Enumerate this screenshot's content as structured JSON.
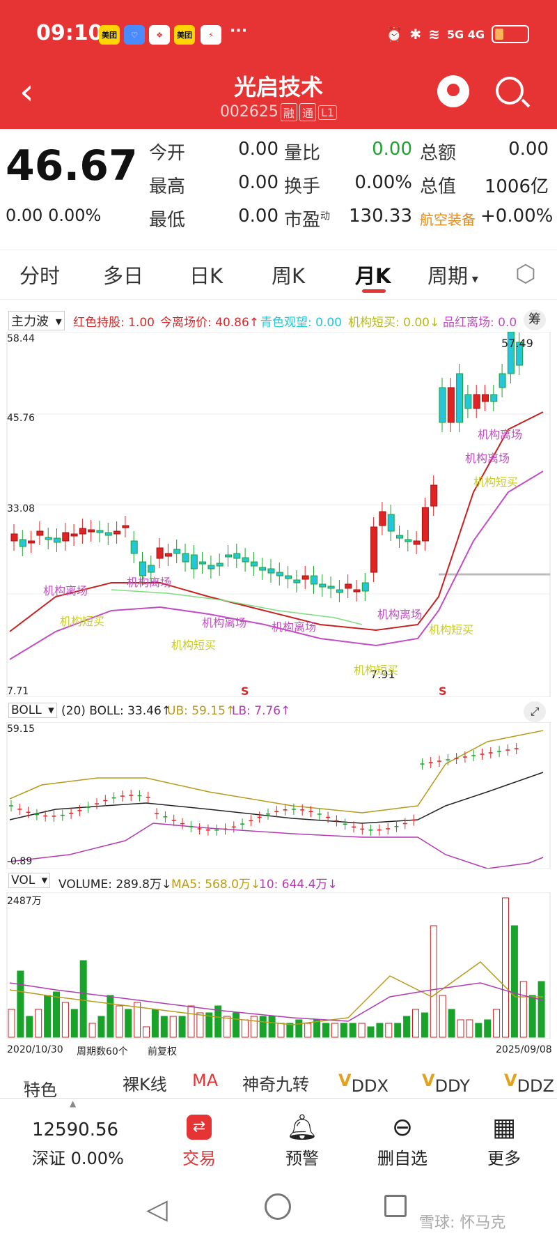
{
  "status_bar": {
    "time": "09:10",
    "apps": [
      "美团",
      "荣耀",
      "网易",
      "美团",
      "⚡"
    ],
    "more": "···",
    "network": "5G 4G"
  },
  "header": {
    "title": "光启技术",
    "code": "002625",
    "badges": [
      "融",
      "通",
      "L1"
    ]
  },
  "quote": {
    "price": "46.67",
    "change": "0.00",
    "change_pct": "0.00%",
    "fields": [
      {
        "label": "今开",
        "value": "0.00"
      },
      {
        "label": "量比",
        "value": "0.00"
      },
      {
        "label": "总额",
        "value": "0.00"
      },
      {
        "label": "最高",
        "value": "0.00"
      },
      {
        "label": "换手",
        "value": "0.00%"
      },
      {
        "label": "总值",
        "value": "1006亿"
      },
      {
        "label": "最低",
        "value": "0.00"
      },
      {
        "label": "市盈",
        "value": "130.33"
      },
      {
        "label": "航空装备",
        "value": "+0.00%"
      }
    ],
    "pe_sup": "动"
  },
  "tabs": {
    "items": [
      "分时",
      "多日",
      "日K",
      "周K",
      "月K",
      "周期"
    ],
    "active": "月K"
  },
  "main_indicator": {
    "name": "主力波",
    "items": [
      {
        "text": "红色持股: 1.00",
        "color": "#d42a2a"
      },
      {
        "text": "今离场价: 40.86↑",
        "color": "#d42a2a"
      },
      {
        "text": "青色观望: 0.00",
        "color": "#25c6d9"
      },
      {
        "text": "机构短买: 0.00↓",
        "color": "#b6b81c"
      },
      {
        "text": "品红离场: 0.0",
        "color": "#c24dc2"
      }
    ],
    "y_top": "58.44",
    "y_mid1": "45.76",
    "y_mid2": "33.08",
    "y_bottom": "7.71",
    "high_label": "57.49",
    "low_label": "7.91",
    "s_marks": [
      "S",
      "S"
    ],
    "side_btn": "筹"
  },
  "boll": {
    "name": "BOLL",
    "items": [
      {
        "text": "(20) BOLL: 33.46↑",
        "color": "#222"
      },
      {
        "text": "UB: 59.15↑",
        "color": "#b79a1a"
      },
      {
        "text": "LB: 7.76↑",
        "color": "#b03bb0"
      }
    ],
    "y_top": "59.15",
    "y_bottom": "-0.89"
  },
  "vol": {
    "name": "VOL",
    "items": [
      {
        "text": "VOLUME: 289.8万↓",
        "color": "#222"
      },
      {
        "text": "MA5: 568.0万↓",
        "color": "#b79a1a"
      },
      {
        "text": "10: 644.4万↓",
        "color": "#b03bb0"
      }
    ],
    "y_top": "2487万",
    "date_start": "2020/10/30",
    "period_count": "周期数60个",
    "adjust": "前复权",
    "date_end": "2025/09/08"
  },
  "annotations": [
    "机构离场",
    "机构短买"
  ],
  "toolbar": {
    "items": [
      "特色",
      "裸K线",
      "MA",
      "神奇九转",
      "DDX",
      "DDY",
      "DDZ"
    ]
  },
  "bottom_nav": {
    "index_value": "12590.56",
    "index_name": "深证 0.00%",
    "items": [
      "交易",
      "预警",
      "删自选",
      "更多"
    ]
  },
  "watermark": "雪球: 怀马克",
  "colors": {
    "accent": "#e63434",
    "up": "#e02424",
    "down": "#1aa32b"
  }
}
